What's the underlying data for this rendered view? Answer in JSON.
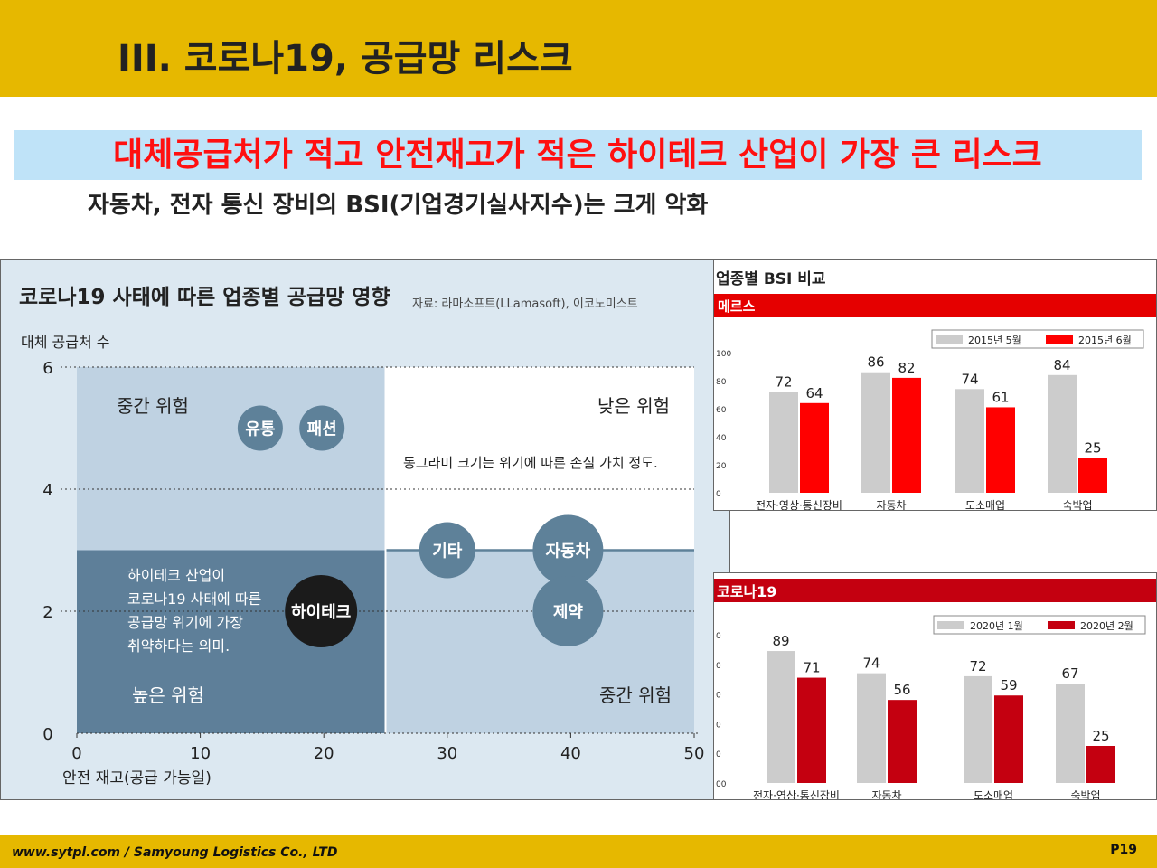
{
  "slide": {
    "title": "III. 코로나19, 공급망 리스크",
    "banner": "대체공급처가 적고 안전재고가 적은 하이테크 산업이 가장 큰 리스크",
    "subtitle": "자동차, 전자 통신 장비의  BSI(기업경기실사지수)는 크게 악화",
    "footer_left": "www.sytpl.com / Samyoung Logistics Co., LTD",
    "footer_right": "P19"
  },
  "colors": {
    "accent": "#e6b800",
    "banner_bg": "#bfe3f8",
    "banner_text": "#ff1010",
    "bubble": "#5e8199",
    "high_risk": "#5e7f99",
    "mid_risk": "#bfd2e2",
    "hightech_bubble": "#1b1b1b",
    "bar_gray": "#cccccc",
    "bar_red": "#ff0000",
    "bar_darkred": "#c40010"
  },
  "chart_data": [
    {
      "type": "scatter",
      "title": "코로나19 사태에 따른 업종별 공급망 영향",
      "source": "자료: 라마소프트(LLamasoft), 이코노미스트",
      "ylabel": "대체 공급처 수",
      "xlabel": "안전 재고(공급 가능일)",
      "xlim": [
        0,
        50
      ],
      "ylim": [
        0,
        6
      ],
      "x_ticks": [
        0,
        10,
        20,
        30,
        40,
        50
      ],
      "y_ticks": [
        0,
        2,
        4,
        6
      ],
      "zones": {
        "top_left": "중간 위험",
        "top_right": "낮은 위험",
        "bottom_left": "높은 위험",
        "bottom_right": "중간 위험"
      },
      "note": "동그라미 크기는 위기에 따른 손실 가치 정도.",
      "annotation": [
        "하이테크 산업이",
        "코로나19 사태에 따른",
        "공급망 위기에 가장",
        "취약하다는 의미."
      ],
      "points": [
        {
          "label": "유통",
          "x": 15,
          "y": 5.0
        },
        {
          "label": "패션",
          "x": 20,
          "y": 5.0
        },
        {
          "label": "기타",
          "x": 30,
          "y": 3.0
        },
        {
          "label": "자동차",
          "x": 40,
          "y": 3.0
        },
        {
          "label": "제약",
          "x": 40,
          "y": 2.0
        },
        {
          "label": "하이테크",
          "x": 20,
          "y": 2.0
        }
      ]
    },
    {
      "type": "bar",
      "title": "업종별 BSI 비교",
      "subtitle": "메르스",
      "categories": [
        "전자·영상·통신장비",
        "자동차",
        "도소매업",
        "숙박업"
      ],
      "series": [
        {
          "name": "2015년 5월",
          "values": [
            72,
            86,
            74,
            84
          ]
        },
        {
          "name": "2015년 6월",
          "values": [
            64,
            82,
            61,
            25
          ]
        }
      ],
      "y_ticks": [
        0,
        20,
        40,
        60,
        80,
        100
      ],
      "ylim": [
        0,
        100
      ]
    },
    {
      "type": "bar",
      "title": "코로나19",
      "categories": [
        "전자·영상·통신장비",
        "자동차",
        "도소매업",
        "숙박업"
      ],
      "series": [
        {
          "name": "2020년 1월",
          "values": [
            89,
            74,
            72,
            67
          ]
        },
        {
          "name": "2020년 2월",
          "values": [
            71,
            56,
            59,
            25
          ]
        }
      ],
      "y_ticks": [
        "00",
        "0",
        "0",
        "0",
        "0",
        "0"
      ],
      "ylim": [
        0,
        100
      ]
    }
  ]
}
